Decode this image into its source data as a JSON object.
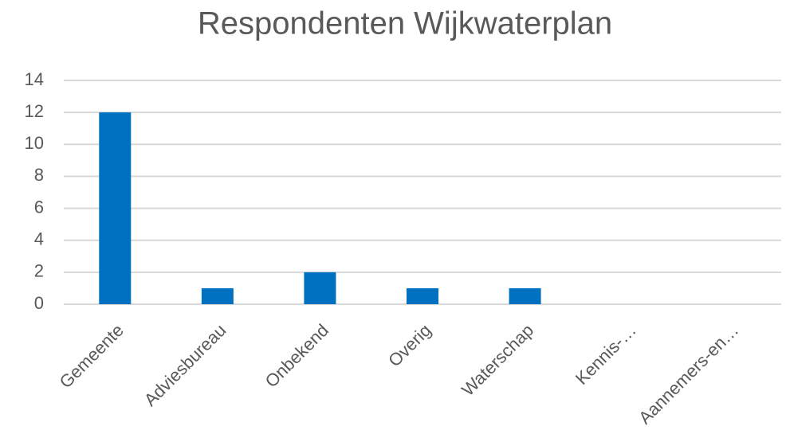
{
  "chart_data": {
    "type": "bar",
    "title": "Respondenten Wijkwaterplan",
    "categories": [
      "Gemeente",
      "Adviesbureau",
      "Onbekend",
      "Overig",
      "Waterschap",
      "Kennis-…",
      "Aannemers-en…"
    ],
    "values": [
      12,
      1,
      2,
      1,
      1,
      0,
      0
    ],
    "color": "#0070c0",
    "ylim": [
      0,
      14
    ],
    "yticks": [
      0,
      2,
      4,
      6,
      8,
      10,
      12,
      14
    ],
    "grid": true
  }
}
